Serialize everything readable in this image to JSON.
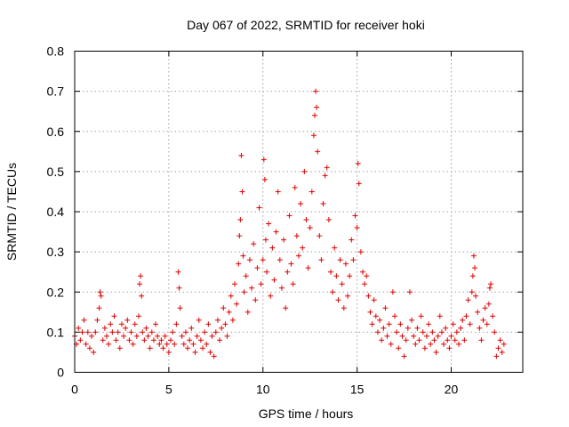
{
  "chart_data": {
    "type": "scatter",
    "title": "Day 067 of 2022, SRMTID for receiver hoki",
    "xlabel": "GPS time / hours",
    "ylabel": "SRMTID / TECUs",
    "xlim": [
      0,
      23.8
    ],
    "ylim": [
      0,
      0.8
    ],
    "xticks": [
      0,
      5,
      10,
      15,
      20
    ],
    "xtick_labels": [
      "0",
      "5",
      "10",
      "15",
      "20"
    ],
    "yticks": [
      0,
      0.1,
      0.2,
      0.3,
      0.4,
      0.5,
      0.6,
      0.7,
      0.8
    ],
    "ytick_labels": [
      "0",
      "0.1",
      "0.2",
      "0.3",
      "0.4",
      "0.5",
      "0.6",
      "0.7",
      "0.8"
    ],
    "grid": true,
    "marker": "+",
    "color": "#e00000",
    "series": [
      {
        "name": "SRMTID",
        "points": [
          [
            0.0,
            0.09
          ],
          [
            0.1,
            0.07
          ],
          [
            0.2,
            0.11
          ],
          [
            0.3,
            0.08
          ],
          [
            0.4,
            0.1
          ],
          [
            0.5,
            0.13
          ],
          [
            0.6,
            0.07
          ],
          [
            0.7,
            0.1
          ],
          [
            0.8,
            0.06
          ],
          [
            0.9,
            0.09
          ],
          [
            1.0,
            0.05
          ],
          [
            1.1,
            0.1
          ],
          [
            1.2,
            0.13
          ],
          [
            1.3,
            0.16
          ],
          [
            1.35,
            0.2
          ],
          [
            1.4,
            0.19
          ],
          [
            1.5,
            0.08
          ],
          [
            1.6,
            0.11
          ],
          [
            1.7,
            0.09
          ],
          [
            1.8,
            0.07
          ],
          [
            1.9,
            0.12
          ],
          [
            2.0,
            0.1
          ],
          [
            2.1,
            0.14
          ],
          [
            2.2,
            0.08
          ],
          [
            2.3,
            0.1
          ],
          [
            2.4,
            0.06
          ],
          [
            2.5,
            0.12
          ],
          [
            2.6,
            0.09
          ],
          [
            2.7,
            0.11
          ],
          [
            2.8,
            0.13
          ],
          [
            2.9,
            0.08
          ],
          [
            3.0,
            0.1
          ],
          [
            3.1,
            0.07
          ],
          [
            3.2,
            0.12
          ],
          [
            3.3,
            0.09
          ],
          [
            3.4,
            0.14
          ],
          [
            3.45,
            0.22
          ],
          [
            3.5,
            0.24
          ],
          [
            3.55,
            0.19
          ],
          [
            3.6,
            0.1
          ],
          [
            3.7,
            0.08
          ],
          [
            3.8,
            0.11
          ],
          [
            3.9,
            0.09
          ],
          [
            4.0,
            0.06
          ],
          [
            4.1,
            0.1
          ],
          [
            4.2,
            0.08
          ],
          [
            4.3,
            0.12
          ],
          [
            4.4,
            0.09
          ],
          [
            4.5,
            0.07
          ],
          [
            4.6,
            0.08
          ],
          [
            4.7,
            0.06
          ],
          [
            4.8,
            0.09
          ],
          [
            4.9,
            0.07
          ],
          [
            5.0,
            0.05
          ],
          [
            5.1,
            0.08
          ],
          [
            5.2,
            0.1
          ],
          [
            5.3,
            0.07
          ],
          [
            5.4,
            0.12
          ],
          [
            5.5,
            0.25
          ],
          [
            5.55,
            0.21
          ],
          [
            5.6,
            0.16
          ],
          [
            5.7,
            0.09
          ],
          [
            5.8,
            0.07
          ],
          [
            5.9,
            0.1
          ],
          [
            6.0,
            0.06
          ],
          [
            6.1,
            0.08
          ],
          [
            6.2,
            0.11
          ],
          [
            6.3,
            0.07
          ],
          [
            6.4,
            0.05
          ],
          [
            6.5,
            0.09
          ],
          [
            6.6,
            0.13
          ],
          [
            6.7,
            0.08
          ],
          [
            6.8,
            0.06
          ],
          [
            6.9,
            0.1
          ],
          [
            7.0,
            0.07
          ],
          [
            7.1,
            0.12
          ],
          [
            7.2,
            0.05
          ],
          [
            7.3,
            0.09
          ],
          [
            7.4,
            0.04
          ],
          [
            7.5,
            0.1
          ],
          [
            7.6,
            0.13
          ],
          [
            7.7,
            0.08
          ],
          [
            7.8,
            0.11
          ],
          [
            7.9,
            0.16
          ],
          [
            8.0,
            0.12
          ],
          [
            8.1,
            0.09
          ],
          [
            8.2,
            0.15
          ],
          [
            8.3,
            0.19
          ],
          [
            8.4,
            0.13
          ],
          [
            8.5,
            0.22
          ],
          [
            8.6,
            0.17
          ],
          [
            8.7,
            0.27
          ],
          [
            8.75,
            0.34
          ],
          [
            8.8,
            0.38
          ],
          [
            8.85,
            0.54
          ],
          [
            8.9,
            0.45
          ],
          [
            8.95,
            0.29
          ],
          [
            9.0,
            0.2
          ],
          [
            9.1,
            0.24
          ],
          [
            9.2,
            0.15
          ],
          [
            9.3,
            0.28
          ],
          [
            9.4,
            0.21
          ],
          [
            9.5,
            0.32
          ],
          [
            9.6,
            0.18
          ],
          [
            9.7,
            0.26
          ],
          [
            9.8,
            0.41
          ],
          [
            9.9,
            0.22
          ],
          [
            10.0,
            0.28
          ],
          [
            10.05,
            0.53
          ],
          [
            10.1,
            0.48
          ],
          [
            10.15,
            0.33
          ],
          [
            10.2,
            0.25
          ],
          [
            10.3,
            0.37
          ],
          [
            10.4,
            0.19
          ],
          [
            10.5,
            0.31
          ],
          [
            10.6,
            0.23
          ],
          [
            10.7,
            0.35
          ],
          [
            10.8,
            0.45
          ],
          [
            10.9,
            0.28
          ],
          [
            11.0,
            0.21
          ],
          [
            11.1,
            0.33
          ],
          [
            11.2,
            0.16
          ],
          [
            11.3,
            0.25
          ],
          [
            11.4,
            0.39
          ],
          [
            11.5,
            0.27
          ],
          [
            11.6,
            0.22
          ],
          [
            11.7,
            0.46
          ],
          [
            11.8,
            0.34
          ],
          [
            11.9,
            0.29
          ],
          [
            12.0,
            0.42
          ],
          [
            12.1,
            0.31
          ],
          [
            12.2,
            0.5
          ],
          [
            12.3,
            0.38
          ],
          [
            12.4,
            0.26
          ],
          [
            12.5,
            0.36
          ],
          [
            12.6,
            0.45
          ],
          [
            12.7,
            0.59
          ],
          [
            12.75,
            0.64
          ],
          [
            12.8,
            0.7
          ],
          [
            12.85,
            0.66
          ],
          [
            12.9,
            0.55
          ],
          [
            13.0,
            0.34
          ],
          [
            13.1,
            0.28
          ],
          [
            13.2,
            0.42
          ],
          [
            13.3,
            0.49
          ],
          [
            13.4,
            0.51
          ],
          [
            13.5,
            0.38
          ],
          [
            13.6,
            0.25
          ],
          [
            13.7,
            0.2
          ],
          [
            13.8,
            0.31
          ],
          [
            13.9,
            0.24
          ],
          [
            14.0,
            0.18
          ],
          [
            14.1,
            0.28
          ],
          [
            14.2,
            0.22
          ],
          [
            14.3,
            0.16
          ],
          [
            14.4,
            0.27
          ],
          [
            14.5,
            0.19
          ],
          [
            14.6,
            0.24
          ],
          [
            14.7,
            0.33
          ],
          [
            14.8,
            0.28
          ],
          [
            14.9,
            0.39
          ],
          [
            15.0,
            0.36
          ],
          [
            15.05,
            0.52
          ],
          [
            15.1,
            0.47
          ],
          [
            15.2,
            0.3
          ],
          [
            15.3,
            0.25
          ],
          [
            15.4,
            0.22
          ],
          [
            15.5,
            0.24
          ],
          [
            15.6,
            0.19
          ],
          [
            15.7,
            0.15
          ],
          [
            15.8,
            0.12
          ],
          [
            15.9,
            0.18
          ],
          [
            16.0,
            0.14
          ],
          [
            16.1,
            0.1
          ],
          [
            16.2,
            0.13
          ],
          [
            16.3,
            0.08
          ],
          [
            16.4,
            0.11
          ],
          [
            16.5,
            0.16
          ],
          [
            16.6,
            0.09
          ],
          [
            16.7,
            0.12
          ],
          [
            16.8,
            0.07
          ],
          [
            16.9,
            0.2
          ],
          [
            17.0,
            0.14
          ],
          [
            17.1,
            0.1
          ],
          [
            17.2,
            0.06
          ],
          [
            17.3,
            0.12
          ],
          [
            17.4,
            0.09
          ],
          [
            17.5,
            0.04
          ],
          [
            17.6,
            0.08
          ],
          [
            17.7,
            0.11
          ],
          [
            17.8,
            0.2
          ],
          [
            17.9,
            0.13
          ],
          [
            18.0,
            0.09
          ],
          [
            18.1,
            0.07
          ],
          [
            18.2,
            0.11
          ],
          [
            18.3,
            0.08
          ],
          [
            18.4,
            0.14
          ],
          [
            18.5,
            0.1
          ],
          [
            18.6,
            0.06
          ],
          [
            18.7,
            0.09
          ],
          [
            18.8,
            0.12
          ],
          [
            18.9,
            0.07
          ],
          [
            19.0,
            0.1
          ],
          [
            19.1,
            0.08
          ],
          [
            19.2,
            0.05
          ],
          [
            19.3,
            0.09
          ],
          [
            19.4,
            0.14
          ],
          [
            19.5,
            0.1
          ],
          [
            19.6,
            0.07
          ],
          [
            19.7,
            0.11
          ],
          [
            19.8,
            0.08
          ],
          [
            19.9,
            0.06
          ],
          [
            20.0,
            0.09
          ],
          [
            20.1,
            0.12
          ],
          [
            20.2,
            0.08
          ],
          [
            20.3,
            0.1
          ],
          [
            20.4,
            0.07
          ],
          [
            20.5,
            0.11
          ],
          [
            20.6,
            0.13
          ],
          [
            20.7,
            0.08
          ],
          [
            20.8,
            0.14
          ],
          [
            20.9,
            0.18
          ],
          [
            21.0,
            0.12
          ],
          [
            21.1,
            0.2
          ],
          [
            21.15,
            0.24
          ],
          [
            21.2,
            0.29
          ],
          [
            21.25,
            0.26
          ],
          [
            21.3,
            0.19
          ],
          [
            21.4,
            0.15
          ],
          [
            21.5,
            0.11
          ],
          [
            21.6,
            0.08
          ],
          [
            21.7,
            0.13
          ],
          [
            21.8,
            0.16
          ],
          [
            21.9,
            0.12
          ],
          [
            22.0,
            0.17
          ],
          [
            22.05,
            0.21
          ],
          [
            22.1,
            0.22
          ],
          [
            22.2,
            0.14
          ],
          [
            22.3,
            0.1
          ],
          [
            22.4,
            0.04
          ],
          [
            22.5,
            0.06
          ],
          [
            22.6,
            0.08
          ],
          [
            22.7,
            0.05
          ],
          [
            22.8,
            0.07
          ]
        ]
      }
    ]
  }
}
